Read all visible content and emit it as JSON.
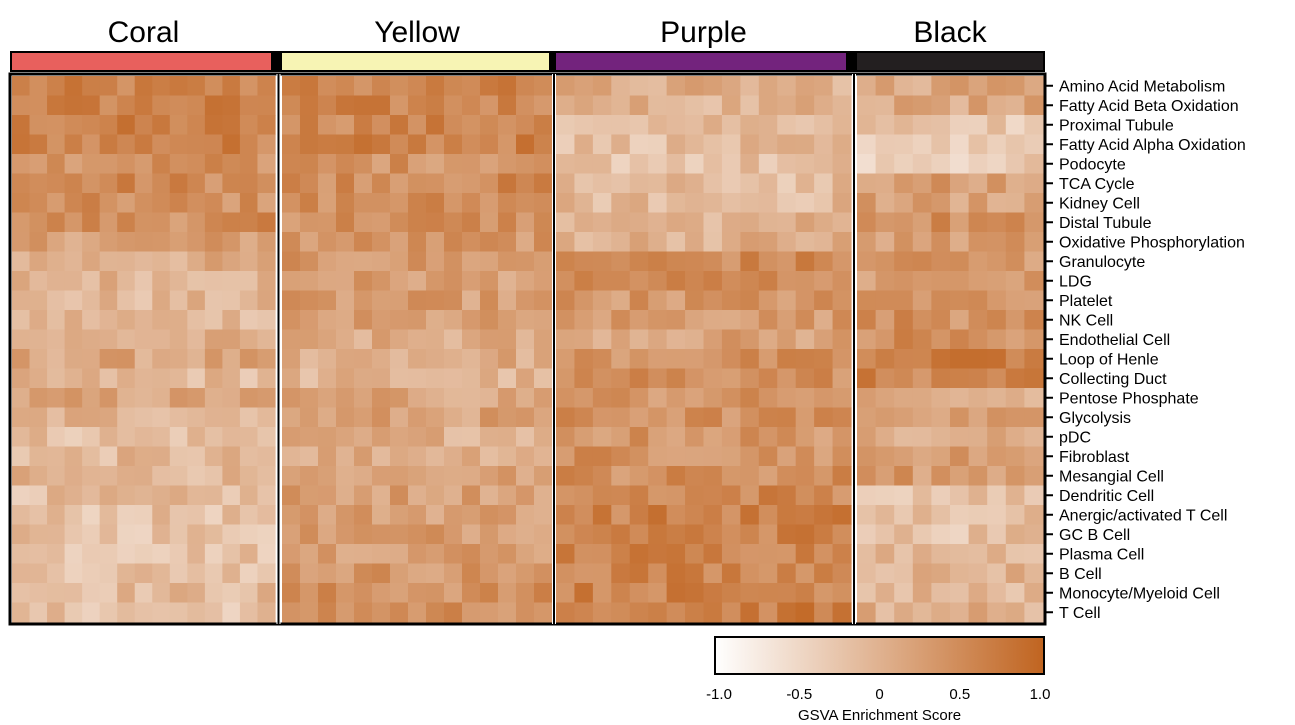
{
  "chart_data": {
    "type": "heatmap",
    "groups": [
      {
        "name": "Coral",
        "color": "#e8605d",
        "columns": 15
      },
      {
        "name": "Yellow",
        "color": "#f7f4b4",
        "columns": 15
      },
      {
        "name": "Purple",
        "color": "#73237d",
        "columns": 16
      },
      {
        "name": "Black",
        "color": "#231f20",
        "columns": 10
      }
    ],
    "rows": [
      {
        "label": "Amino Acid Metabolism",
        "means": [
          0.55,
          0.55,
          0.05,
          0.15
        ]
      },
      {
        "label": "Fatty Acid Beta Oxidation",
        "means": [
          0.6,
          0.55,
          0.0,
          0.1
        ]
      },
      {
        "label": "Proximal Tubule",
        "means": [
          0.6,
          0.55,
          -0.05,
          -0.3
        ]
      },
      {
        "label": "Fatty Acid Alpha Oxidation",
        "means": [
          0.6,
          0.6,
          -0.15,
          -0.3
        ]
      },
      {
        "label": "Podocyte",
        "means": [
          0.45,
          0.4,
          -0.2,
          -0.35
        ]
      },
      {
        "label": "TCA Cycle",
        "means": [
          0.5,
          0.5,
          -0.15,
          0.25
        ]
      },
      {
        "label": "Kidney Cell",
        "means": [
          0.4,
          0.45,
          -0.1,
          0.2
        ]
      },
      {
        "label": "Distal Tubule",
        "means": [
          0.45,
          0.45,
          0.0,
          0.4
        ]
      },
      {
        "label": "Oxidative Phosphorylation",
        "means": [
          0.25,
          0.35,
          0.05,
          0.3
        ]
      },
      {
        "label": "Granulocyte",
        "means": [
          0.05,
          0.3,
          0.5,
          0.35
        ]
      },
      {
        "label": "LDG",
        "means": [
          0.0,
          0.25,
          0.5,
          0.25
        ]
      },
      {
        "label": "Platelet",
        "means": [
          -0.1,
          0.25,
          0.35,
          0.35
        ]
      },
      {
        "label": "NK Cell",
        "means": [
          -0.05,
          0.2,
          0.3,
          0.4
        ]
      },
      {
        "label": "Endothelial Cell",
        "means": [
          0.0,
          0.05,
          0.2,
          0.45
        ]
      },
      {
        "label": "Loop of Henle",
        "means": [
          0.15,
          0.1,
          0.4,
          0.7
        ]
      },
      {
        "label": "Collecting Duct",
        "means": [
          -0.1,
          -0.05,
          0.45,
          0.55
        ]
      },
      {
        "label": "Pentose Phosphate",
        "means": [
          0.15,
          0.15,
          0.35,
          0.0
        ]
      },
      {
        "label": "Glycolysis",
        "means": [
          0.0,
          0.2,
          0.4,
          0.2
        ]
      },
      {
        "label": "pDC",
        "means": [
          -0.15,
          0.05,
          0.35,
          0.15
        ]
      },
      {
        "label": "Fibroblast",
        "means": [
          -0.1,
          0.1,
          0.4,
          0.25
        ]
      },
      {
        "label": "Mesangial Cell",
        "means": [
          -0.05,
          0.2,
          0.45,
          0.3
        ]
      },
      {
        "label": "Dendritic Cell",
        "means": [
          -0.15,
          0.25,
          0.55,
          -0.25
        ]
      },
      {
        "label": "Anergic/activated T Cell",
        "means": [
          -0.2,
          0.25,
          0.6,
          -0.15
        ]
      },
      {
        "label": "GC B Cell",
        "means": [
          -0.2,
          0.3,
          0.6,
          -0.2
        ]
      },
      {
        "label": "Plasma Cell",
        "means": [
          -0.2,
          0.3,
          0.6,
          -0.05
        ]
      },
      {
        "label": "B Cell",
        "means": [
          -0.15,
          0.35,
          0.6,
          0.0
        ]
      },
      {
        "label": "Monocyte/Myeloid Cell",
        "means": [
          -0.1,
          0.4,
          0.6,
          -0.05
        ]
      },
      {
        "label": "T Cell",
        "means": [
          -0.2,
          0.45,
          0.65,
          0.05
        ]
      }
    ],
    "colorbar": {
      "label": "GSVA Enrichment Score",
      "range": [
        -1.0,
        1.0
      ],
      "ticks": [
        "-1.0",
        "-0.5",
        "0",
        "0.5",
        "1.0"
      ],
      "low_color": "#ffffff",
      "high_color": "#c06420"
    }
  }
}
